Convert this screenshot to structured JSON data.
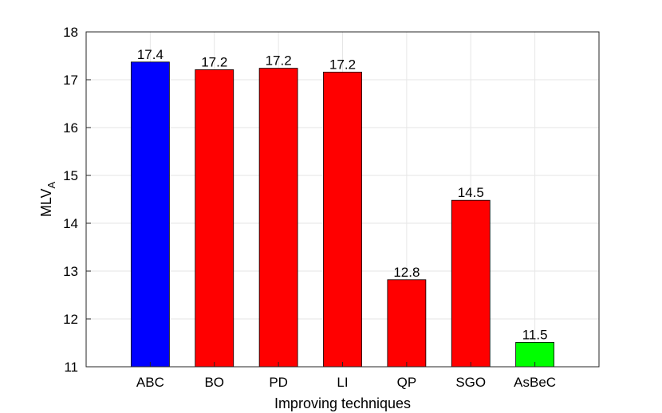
{
  "chart_data": {
    "type": "bar",
    "title": "",
    "xlabel": "Improving techniques",
    "ylabel": "MLV",
    "ylabel_subscript": "A",
    "categories": [
      "ABC",
      "BO",
      "PD",
      "LI",
      "QP",
      "SGO",
      "AsBeC"
    ],
    "values": [
      17.37,
      17.21,
      17.24,
      17.16,
      12.82,
      14.48,
      11.51
    ],
    "data_labels": [
      "17.4",
      "17.2",
      "17.2",
      "17.2",
      "12.8",
      "14.5",
      "11.5"
    ],
    "bar_colors": [
      "#0000ff",
      "#ff0000",
      "#ff0000",
      "#ff0000",
      "#ff0000",
      "#ff0000",
      "#00ff00"
    ],
    "ylim": [
      11,
      18
    ],
    "yticks": [
      11,
      12,
      13,
      14,
      15,
      16,
      17,
      18
    ],
    "grid": true,
    "legend": "none"
  }
}
